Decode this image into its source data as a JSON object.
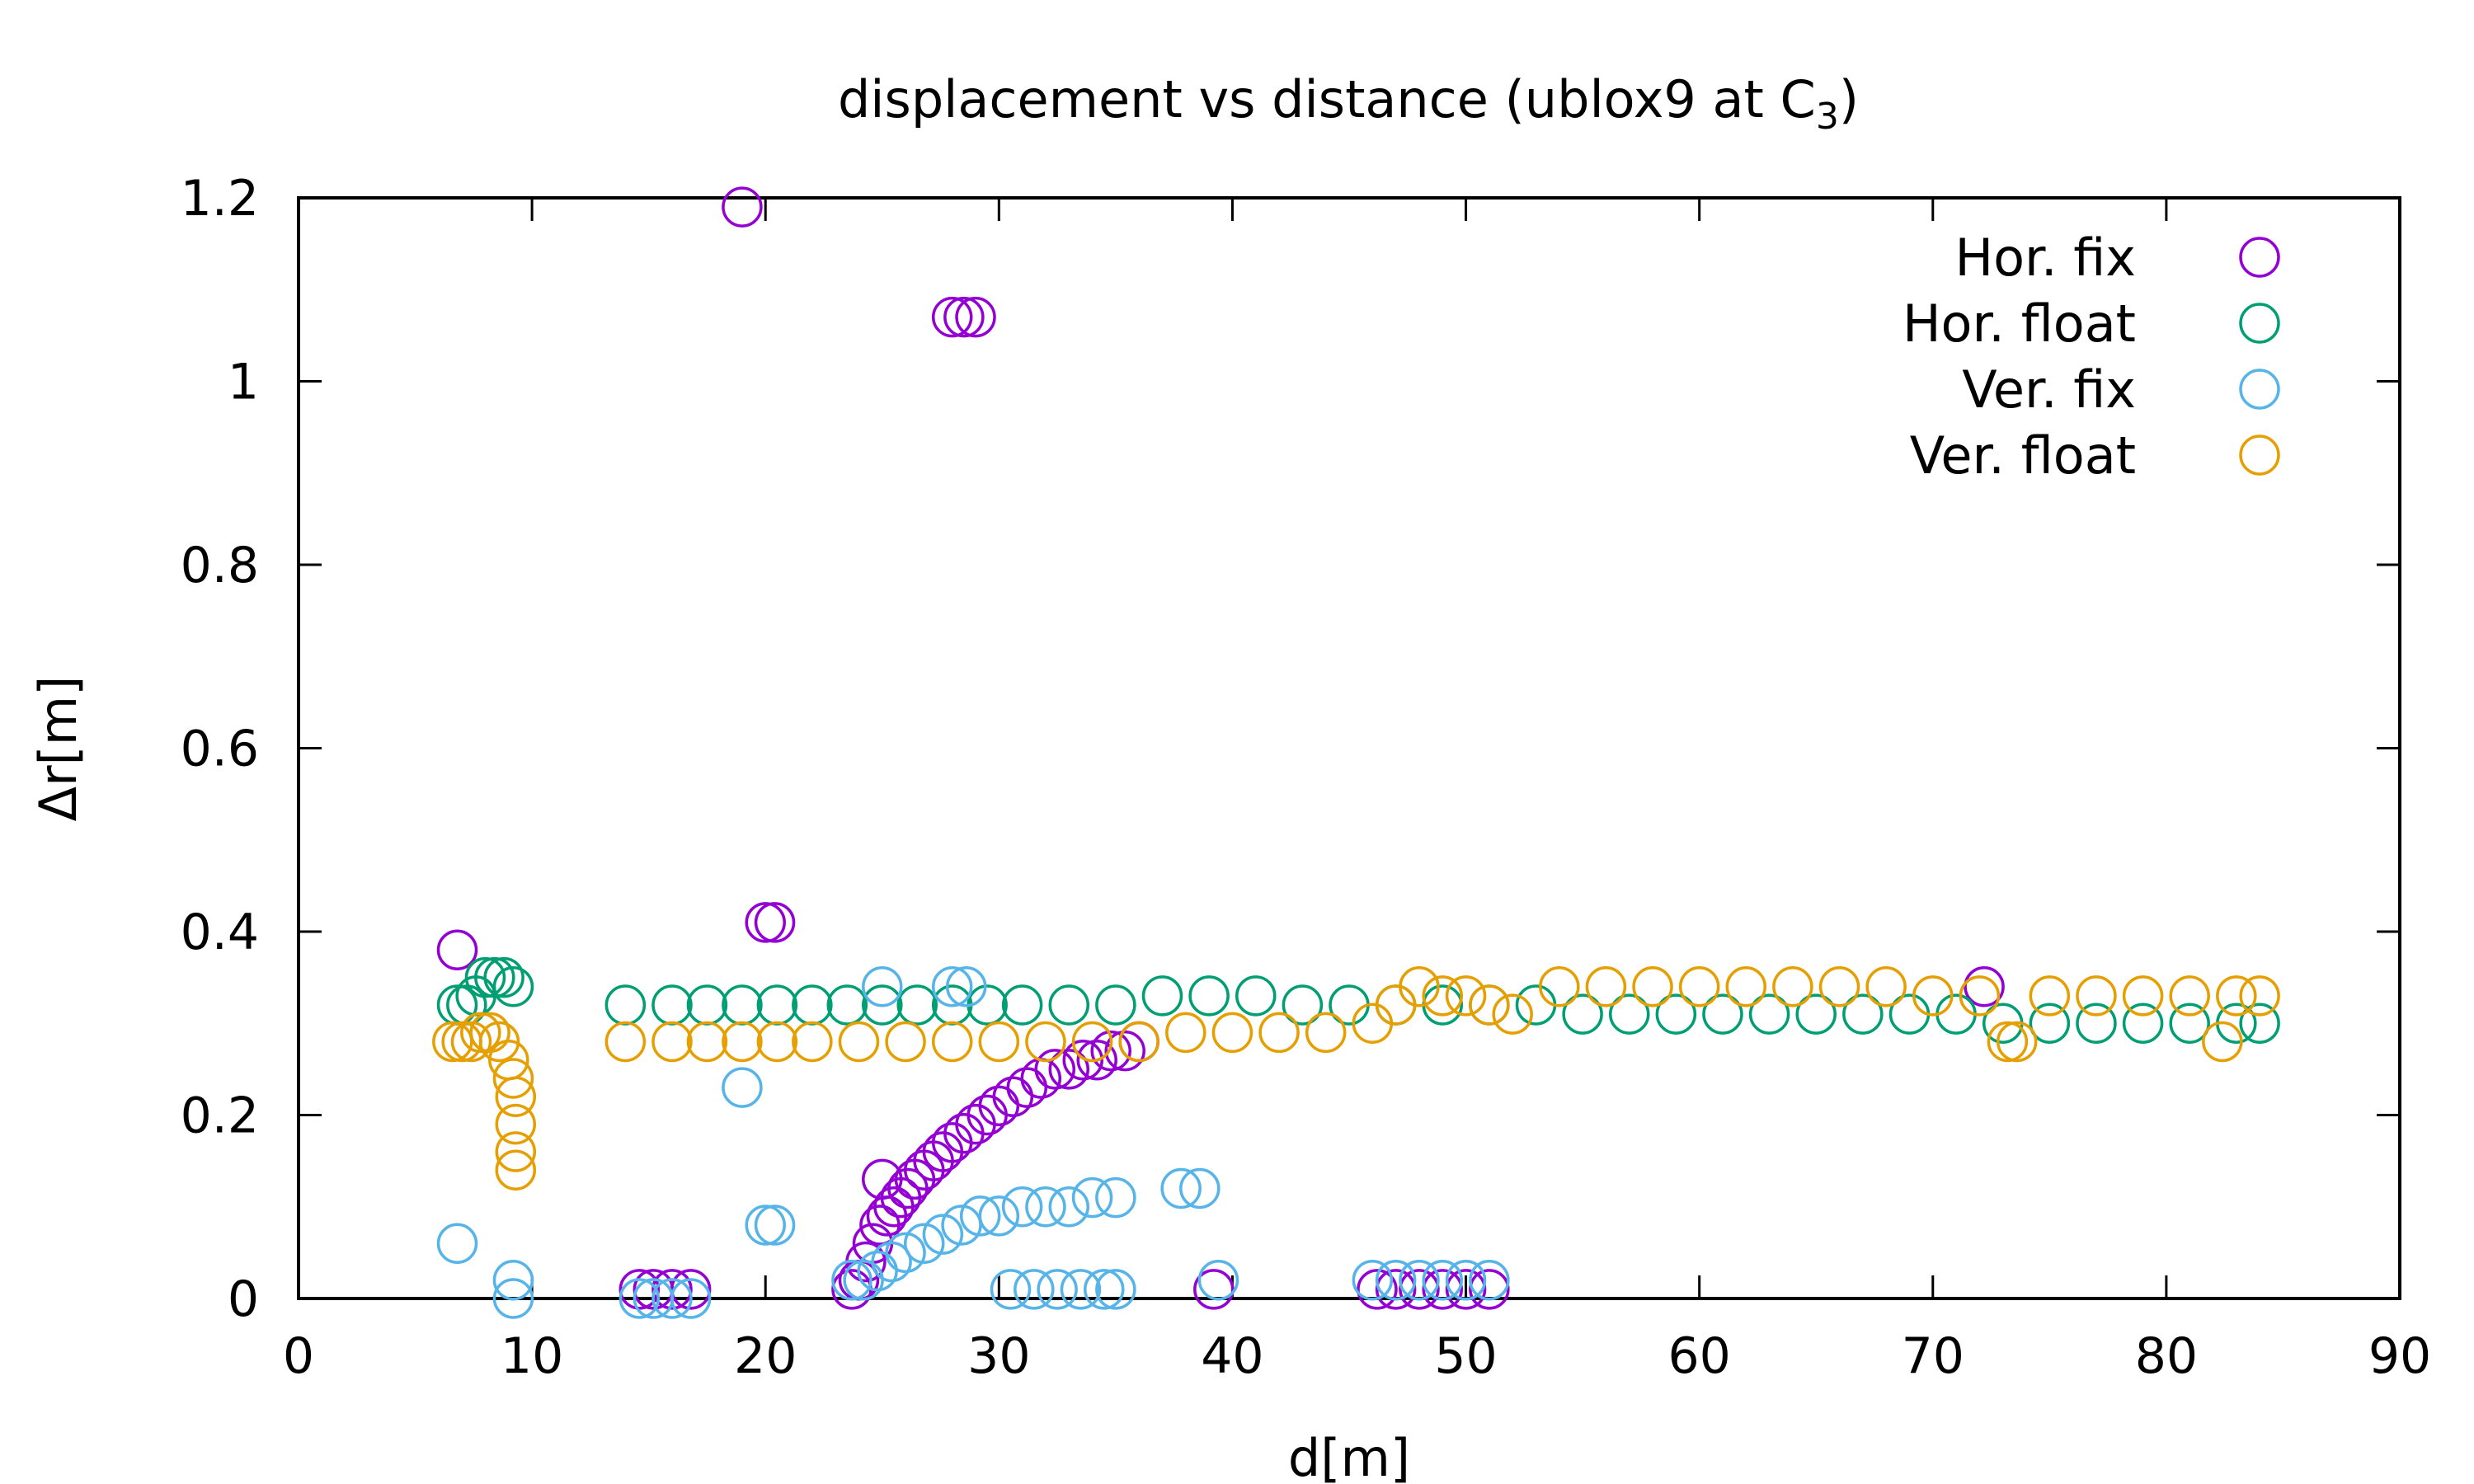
{
  "chart_data": {
    "type": "scatter",
    "title_main": "displacement vs distance (ublox9 at C",
    "title_sub": "3",
    "title_tail": ")",
    "xlabel": "d[m]",
    "ylabel": "Δr[m]",
    "xlim": [
      0,
      90
    ],
    "ylim": [
      0,
      1.2
    ],
    "xticks": [
      0,
      10,
      20,
      30,
      40,
      50,
      60,
      70,
      80,
      90
    ],
    "yticks": [
      0,
      0.2,
      0.4,
      0.6,
      0.8,
      1,
      1.2
    ],
    "xtick_labels": [
      "0",
      "10",
      "20",
      "30",
      "40",
      "50",
      "60",
      "70",
      "80",
      "90"
    ],
    "ytick_labels": [
      "0",
      "0.2",
      "0.4",
      "0.6",
      "0.8",
      "1",
      "1.2"
    ],
    "grid": false,
    "legend_position": "top-right",
    "marker": "open-circle",
    "series": [
      {
        "name": "Hor. fix",
        "color": "#9400d3",
        "x": [
          6.8,
          14.6,
          15.2,
          16.0,
          16.8,
          19.0,
          20.0,
          20.4,
          23.7,
          24.0,
          24.3,
          24.6,
          24.9,
          25.2,
          25.5,
          25.8,
          26.1,
          26.4,
          26.8,
          27.2,
          27.6,
          28.0,
          28.5,
          29.0,
          29.5,
          30.0,
          30.6,
          31.2,
          31.8,
          32.4,
          33.0,
          33.6,
          34.2,
          34.8,
          35.4,
          36.0,
          25.0,
          28.0,
          28.5,
          29.0,
          39.2,
          46.2,
          47.0,
          48.0,
          49.0,
          50.0,
          51.0,
          72.2
        ],
        "y": [
          0.38,
          0.01,
          0.01,
          0.01,
          0.01,
          1.19,
          0.41,
          0.41,
          0.01,
          0.02,
          0.04,
          0.06,
          0.08,
          0.09,
          0.1,
          0.11,
          0.12,
          0.13,
          0.14,
          0.15,
          0.16,
          0.17,
          0.18,
          0.19,
          0.2,
          0.21,
          0.22,
          0.23,
          0.24,
          0.25,
          0.25,
          0.26,
          0.26,
          0.27,
          0.27,
          0.28,
          0.13,
          1.07,
          1.07,
          1.07,
          0.01,
          0.01,
          0.01,
          0.01,
          0.01,
          0.01,
          0.01,
          0.34
        ]
      },
      {
        "name": "Hor. float",
        "color": "#009e73",
        "x": [
          6.8,
          7.2,
          7.6,
          8.0,
          8.4,
          8.8,
          9.2,
          14.0,
          16.0,
          17.5,
          19.0,
          20.5,
          22.0,
          23.5,
          25.0,
          26.5,
          28.0,
          29.5,
          31.0,
          33.0,
          35.0,
          37.0,
          39.0,
          41.0,
          43.0,
          45.0,
          47.0,
          49.0,
          51.0,
          53.0,
          55.0,
          57.0,
          59.0,
          61.0,
          63.0,
          65.0,
          67.0,
          69.0,
          71.0,
          73.0,
          75.0,
          77.0,
          79.0,
          81.0,
          83.0,
          84.0
        ],
        "y": [
          0.32,
          0.32,
          0.33,
          0.35,
          0.35,
          0.35,
          0.34,
          0.32,
          0.32,
          0.32,
          0.32,
          0.32,
          0.32,
          0.32,
          0.32,
          0.32,
          0.32,
          0.32,
          0.32,
          0.32,
          0.32,
          0.33,
          0.33,
          0.33,
          0.32,
          0.32,
          0.32,
          0.32,
          0.32,
          0.32,
          0.31,
          0.31,
          0.31,
          0.31,
          0.31,
          0.31,
          0.31,
          0.31,
          0.31,
          0.3,
          0.3,
          0.3,
          0.3,
          0.3,
          0.3,
          0.3
        ]
      },
      {
        "name": "Ver. fix",
        "color": "#56b4e9",
        "x": [
          6.8,
          9.2,
          9.2,
          14.6,
          15.2,
          16.0,
          16.8,
          19.0,
          20.0,
          20.4,
          23.7,
          24.2,
          24.8,
          25.4,
          26.0,
          26.8,
          27.6,
          28.4,
          29.2,
          30.0,
          31.0,
          32.0,
          33.0,
          34.0,
          35.0,
          25.0,
          28.0,
          28.6,
          30.5,
          31.5,
          32.5,
          33.5,
          34.5,
          35.0,
          37.8,
          38.6,
          39.4,
          46.0,
          47.0,
          48.0,
          49.0,
          50.0,
          51.0
        ],
        "y": [
          0.06,
          0.02,
          0.0,
          0.0,
          0.0,
          0.0,
          0.0,
          0.23,
          0.08,
          0.08,
          0.02,
          0.02,
          0.03,
          0.04,
          0.05,
          0.06,
          0.07,
          0.08,
          0.09,
          0.09,
          0.1,
          0.1,
          0.1,
          0.11,
          0.11,
          0.34,
          0.34,
          0.34,
          0.01,
          0.01,
          0.01,
          0.01,
          0.01,
          0.01,
          0.12,
          0.12,
          0.02,
          0.02,
          0.02,
          0.02,
          0.02,
          0.02,
          0.02
        ]
      },
      {
        "name": "Ver. float",
        "color": "#e69f00",
        "x": [
          6.6,
          7.0,
          7.4,
          7.8,
          8.2,
          8.6,
          9.0,
          9.2,
          9.3,
          9.3,
          9.3,
          9.3,
          14.0,
          16.0,
          17.5,
          19.0,
          20.5,
          22.0,
          24.0,
          26.0,
          28.0,
          30.0,
          32.0,
          34.0,
          36.0,
          38.0,
          40.0,
          42.0,
          44.0,
          46.0,
          47.0,
          48.0,
          49.0,
          50.0,
          51.0,
          52.0,
          54.0,
          56.0,
          58.0,
          60.0,
          62.0,
          64.0,
          66.0,
          68.0,
          70.0,
          72.0,
          73.2,
          73.6,
          75.0,
          77.0,
          79.0,
          81.0,
          82.4,
          83.0,
          84.0
        ],
        "y": [
          0.28,
          0.28,
          0.28,
          0.29,
          0.29,
          0.28,
          0.26,
          0.24,
          0.22,
          0.19,
          0.16,
          0.14,
          0.28,
          0.28,
          0.28,
          0.28,
          0.28,
          0.28,
          0.28,
          0.28,
          0.28,
          0.28,
          0.28,
          0.28,
          0.28,
          0.29,
          0.29,
          0.29,
          0.29,
          0.3,
          0.32,
          0.34,
          0.33,
          0.33,
          0.32,
          0.31,
          0.34,
          0.34,
          0.34,
          0.34,
          0.34,
          0.34,
          0.34,
          0.34,
          0.33,
          0.33,
          0.28,
          0.28,
          0.33,
          0.33,
          0.33,
          0.33,
          0.28,
          0.33,
          0.33
        ]
      }
    ]
  }
}
